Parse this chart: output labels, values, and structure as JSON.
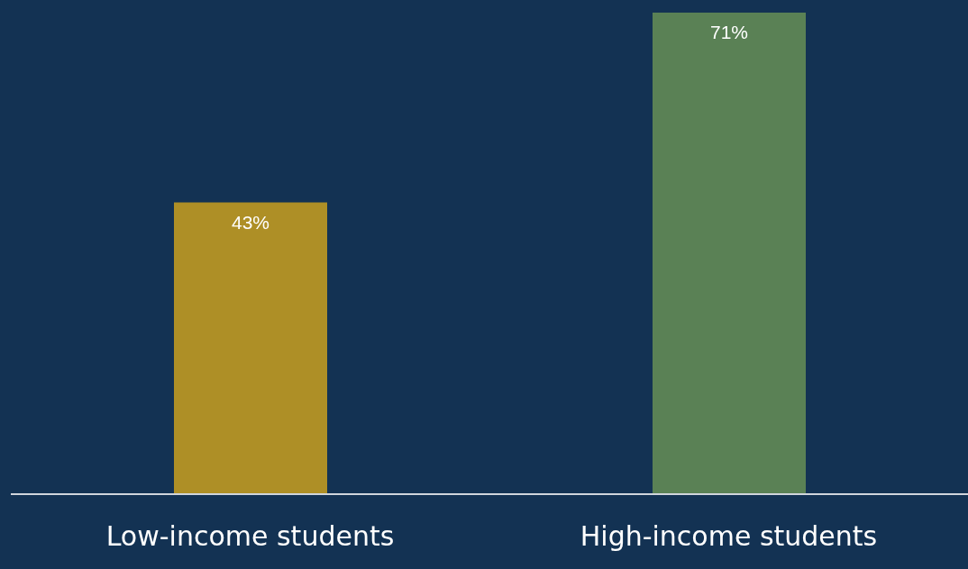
{
  "chart_data": {
    "type": "bar",
    "categories": [
      "Low-income students",
      "High-income students"
    ],
    "values": [
      43,
      71
    ],
    "value_labels": [
      "43%",
      "71%"
    ],
    "colors": [
      "#ae8f26",
      "#5a8155"
    ]
  }
}
